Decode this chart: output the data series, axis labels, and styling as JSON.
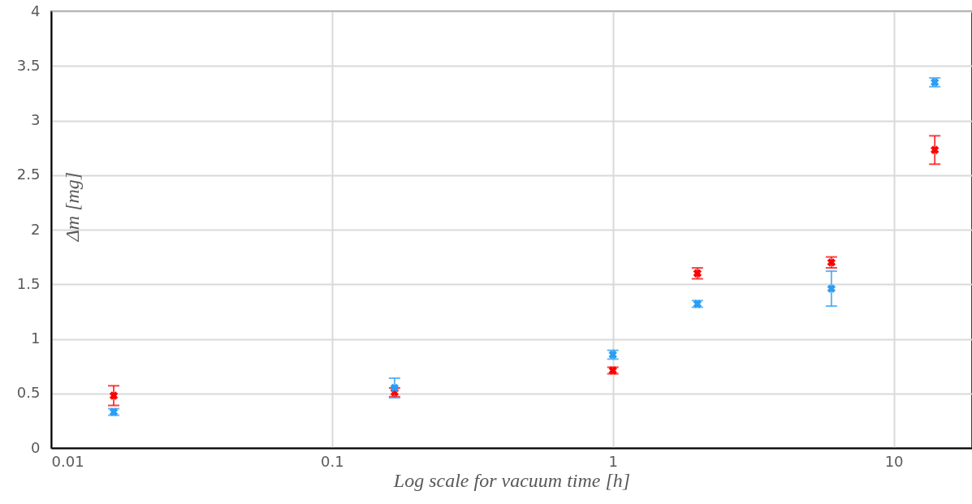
{
  "chart_data": {
    "type": "scatter",
    "xlabel": "Log scale for vacuum time [h]",
    "ylabel": "Δm [mg]",
    "log": "x",
    "xlim": [
      0.01,
      19
    ],
    "xticks": [
      0.01,
      0.1,
      1,
      10
    ],
    "ylim": [
      0,
      4
    ],
    "yticks": [
      0,
      0.5,
      1,
      1.5,
      2,
      2.5,
      3,
      3.5,
      4
    ],
    "grid": true,
    "marker": "cross",
    "x": [
      0.0167,
      0.167,
      1,
      2,
      6,
      14
    ],
    "series": [
      {
        "color": "#ff0000",
        "values": [
          0.48,
          0.51,
          0.71,
          1.6,
          1.7,
          2.73
        ],
        "errors": [
          0.09,
          0.04,
          0.03,
          0.05,
          0.05,
          0.13
        ]
      },
      {
        "color": "#2a9df4",
        "values": [
          0.33,
          0.55,
          0.855,
          1.32,
          1.46,
          3.35
        ],
        "errors": [
          0.03,
          0.09,
          0.04,
          0.03,
          0.16,
          0.04
        ]
      }
    ]
  }
}
